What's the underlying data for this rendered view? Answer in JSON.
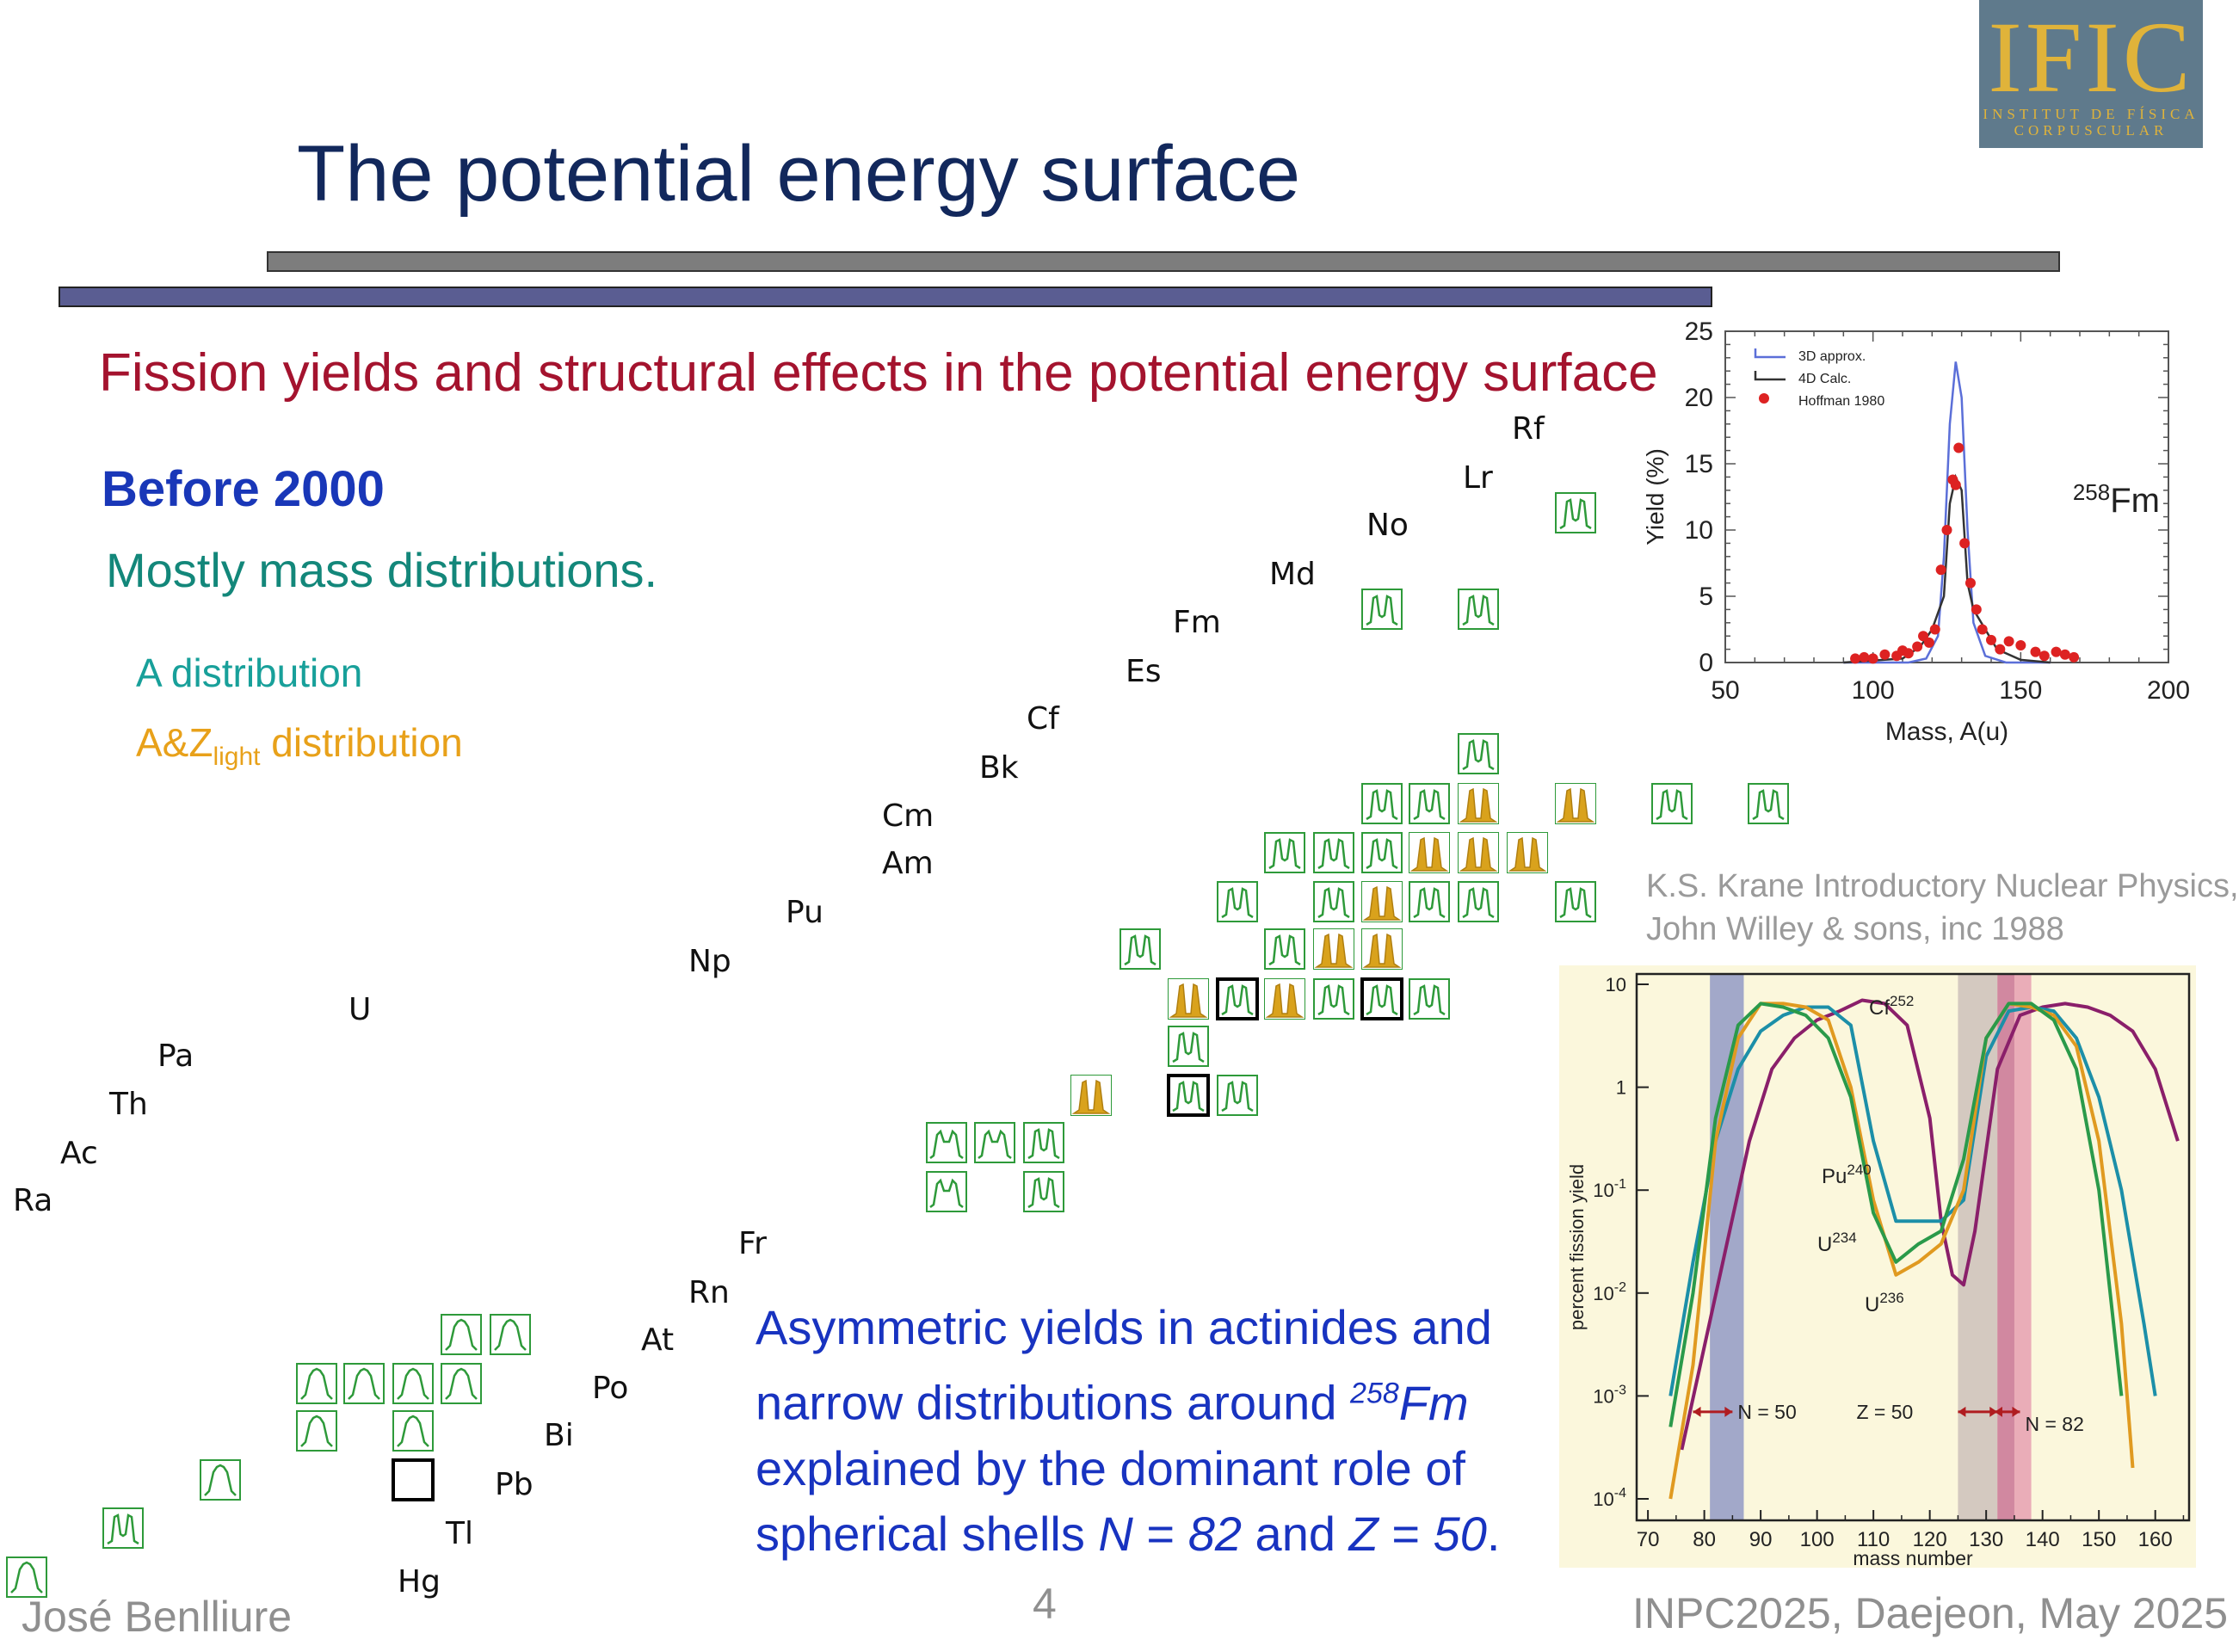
{
  "logo": {
    "text": "IFIC",
    "line1": "INSTITUT DE FÍSICA",
    "line2": "CORPUSCULAR"
  },
  "title": "The potential energy surface",
  "subtitle": "Fission yields and structural effects in the potential energy surface",
  "section": "Before 2000",
  "mostly": "Mostly mass distributions.",
  "legend": {
    "a": "A distribution",
    "az_prefix": "A&Z",
    "az_sub": "light",
    "az_suffix": " distribution",
    "a_color": "#18a09a",
    "az_color": "#e8a11a"
  },
  "elements": [
    "Rf",
    "Lr",
    "No",
    "Md",
    "Fm",
    "Es",
    "Cf",
    "Bk",
    "Cm",
    "Am",
    "Pu",
    "Np",
    "U",
    "Pa",
    "Th",
    "Ac",
    "Ra",
    "Fr",
    "Rn",
    "At",
    "Po",
    "Bi",
    "Pb",
    "Tl",
    "Hg"
  ],
  "asym_text": {
    "line1": "Asymmetric yields in actinides and",
    "line2a": "narrow distributions around ",
    "line2sup": "258",
    "line2b": "Fm",
    "line3": "explained by the dominant role of",
    "line4a": "spherical shells ",
    "line4N": "N",
    "line4b": " = ",
    "line4n": "82",
    "line4c": " and ",
    "line4Z": "Z",
    "line4d": " = ",
    "line4z": "50",
    "line4e": "."
  },
  "krane": {
    "line1": "K.S. Krane Introductory Nuclear Physics,",
    "line2": "John Willey & sons, inc 1988"
  },
  "footer": {
    "author": "José Benlliure",
    "page": "4",
    "event": "INPC2025, Daejeon, May 2025"
  },
  "chart_data": [
    {
      "type": "line",
      "title": "",
      "annotation_sup": "258",
      "annotation": "Fm",
      "xlabel": "Mass, A(u)",
      "ylabel": "Yield (%)",
      "xlim": [
        50,
        200
      ],
      "ylim": [
        0,
        25
      ],
      "xticks": [
        "50",
        "100",
        "150",
        "200"
      ],
      "yticks": [
        "0",
        "5",
        "10",
        "15",
        "20",
        "25"
      ],
      "legend_position": "top-left",
      "series": [
        {
          "name": "3D approx.",
          "color": "#5b6fd8",
          "x": [
            90,
            112,
            118,
            122,
            124,
            126,
            128,
            130,
            132,
            134,
            138,
            145,
            160
          ],
          "y": [
            0,
            0,
            0.3,
            2,
            8,
            18,
            22.7,
            20,
            10,
            3,
            0.5,
            0,
            0
          ]
        },
        {
          "name": "4D Calc.",
          "color": "#333333",
          "x": [
            90,
            110,
            116,
            120,
            124,
            126,
            128,
            130,
            132,
            134,
            138,
            142,
            150,
            160
          ],
          "y": [
            0,
            0.3,
            1.2,
            2.5,
            5,
            12,
            14,
            13,
            6,
            4,
            2.5,
            1,
            0.2,
            0
          ]
        },
        {
          "name": "Hoffman 1980",
          "color": "#dd2222",
          "x": [
            94,
            97,
            100,
            104,
            108,
            110,
            112,
            115,
            117,
            119,
            121,
            123,
            125,
            127,
            128,
            129,
            131,
            133,
            135,
            137,
            140,
            143,
            146,
            150,
            155,
            158,
            162,
            165,
            168
          ],
          "y": [
            0.3,
            0.4,
            0.3,
            0.6,
            0.5,
            0.9,
            0.7,
            1.2,
            2,
            1.5,
            2.5,
            7,
            10,
            13.8,
            13.4,
            16.2,
            9,
            6,
            4,
            2.5,
            1.7,
            1,
            1.6,
            1.3,
            0.8,
            0.5,
            0.8,
            0.6,
            0.4
          ]
        }
      ]
    },
    {
      "type": "line",
      "title": "",
      "xlabel": "mass number",
      "ylabel": "percent fission yield",
      "xlim": [
        70,
        165
      ],
      "ylim": [
        "10^-4",
        "10"
      ],
      "yscale": "log",
      "xticks": [
        "70",
        "80",
        "90",
        "100",
        "110",
        "120",
        "130",
        "140",
        "150",
        "160"
      ],
      "yticks": [
        {
          "base": "10",
          "exp": ""
        },
        {
          "base": "1",
          "exp": ""
        },
        {
          "base": "10",
          "exp": "-1"
        },
        {
          "base": "10",
          "exp": "-2"
        },
        {
          "base": "10",
          "exp": "-3"
        },
        {
          "base": "10",
          "exp": "-4"
        }
      ],
      "annotations": [
        "N = 50",
        "Z = 50",
        "N = 82"
      ],
      "series": [
        {
          "name": "Cf",
          "sup": "252",
          "color": "#8a1f6a",
          "x": [
            76,
            80,
            84,
            88,
            92,
            96,
            100,
            104,
            108,
            112,
            116,
            120,
            122,
            124,
            126,
            128,
            132,
            136,
            140,
            144,
            148,
            152,
            156,
            160,
            164
          ],
          "y": [
            0.0003,
            0.003,
            0.03,
            0.3,
            1.5,
            3,
            4.5,
            5.5,
            7,
            6.5,
            4,
            0.5,
            0.05,
            0.015,
            0.012,
            0.04,
            1.5,
            5,
            6,
            6.5,
            6,
            5,
            3.5,
            1.5,
            0.3
          ]
        },
        {
          "name": "Pu",
          "sup": "240",
          "color": "#1c8fa8",
          "x": [
            74,
            78,
            82,
            86,
            90,
            94,
            98,
            102,
            106,
            110,
            114,
            118,
            122,
            126,
            130,
            134,
            138,
            142,
            146,
            150,
            154,
            158,
            160
          ],
          "y": [
            0.001,
            0.02,
            0.3,
            1.5,
            3.5,
            5,
            6,
            6,
            4,
            0.3,
            0.05,
            0.05,
            0.05,
            0.08,
            2,
            5.5,
            6,
            5.5,
            3,
            0.8,
            0.1,
            0.005,
            0.001
          ]
        },
        {
          "name": "U",
          "sup": "236",
          "color": "#e09a20",
          "x": [
            74,
            78,
            82,
            86,
            90,
            94,
            98,
            102,
            106,
            110,
            114,
            118,
            122,
            126,
            130,
            134,
            138,
            142,
            146,
            150,
            154,
            156
          ],
          "y": [
            0.0001,
            0.002,
            0.3,
            3,
            6.5,
            6.5,
            6,
            4.5,
            1,
            0.08,
            0.015,
            0.02,
            0.03,
            0.1,
            3,
            6.5,
            6,
            5,
            2.5,
            0.3,
            0.005,
            0.0002
          ]
        },
        {
          "name": "U",
          "sup": "234",
          "color": "#2a9a4a",
          "x": [
            74,
            78,
            82,
            86,
            90,
            94,
            98,
            102,
            106,
            110,
            114,
            118,
            122,
            126,
            130,
            134,
            138,
            142,
            146,
            150,
            154
          ],
          "y": [
            0.0005,
            0.01,
            0.5,
            4,
            6.5,
            6,
            5,
            3,
            0.8,
            0.06,
            0.02,
            0.03,
            0.04,
            0.2,
            3,
            6.5,
            6.5,
            4.5,
            1.5,
            0.1,
            0.001
          ]
        }
      ]
    }
  ]
}
